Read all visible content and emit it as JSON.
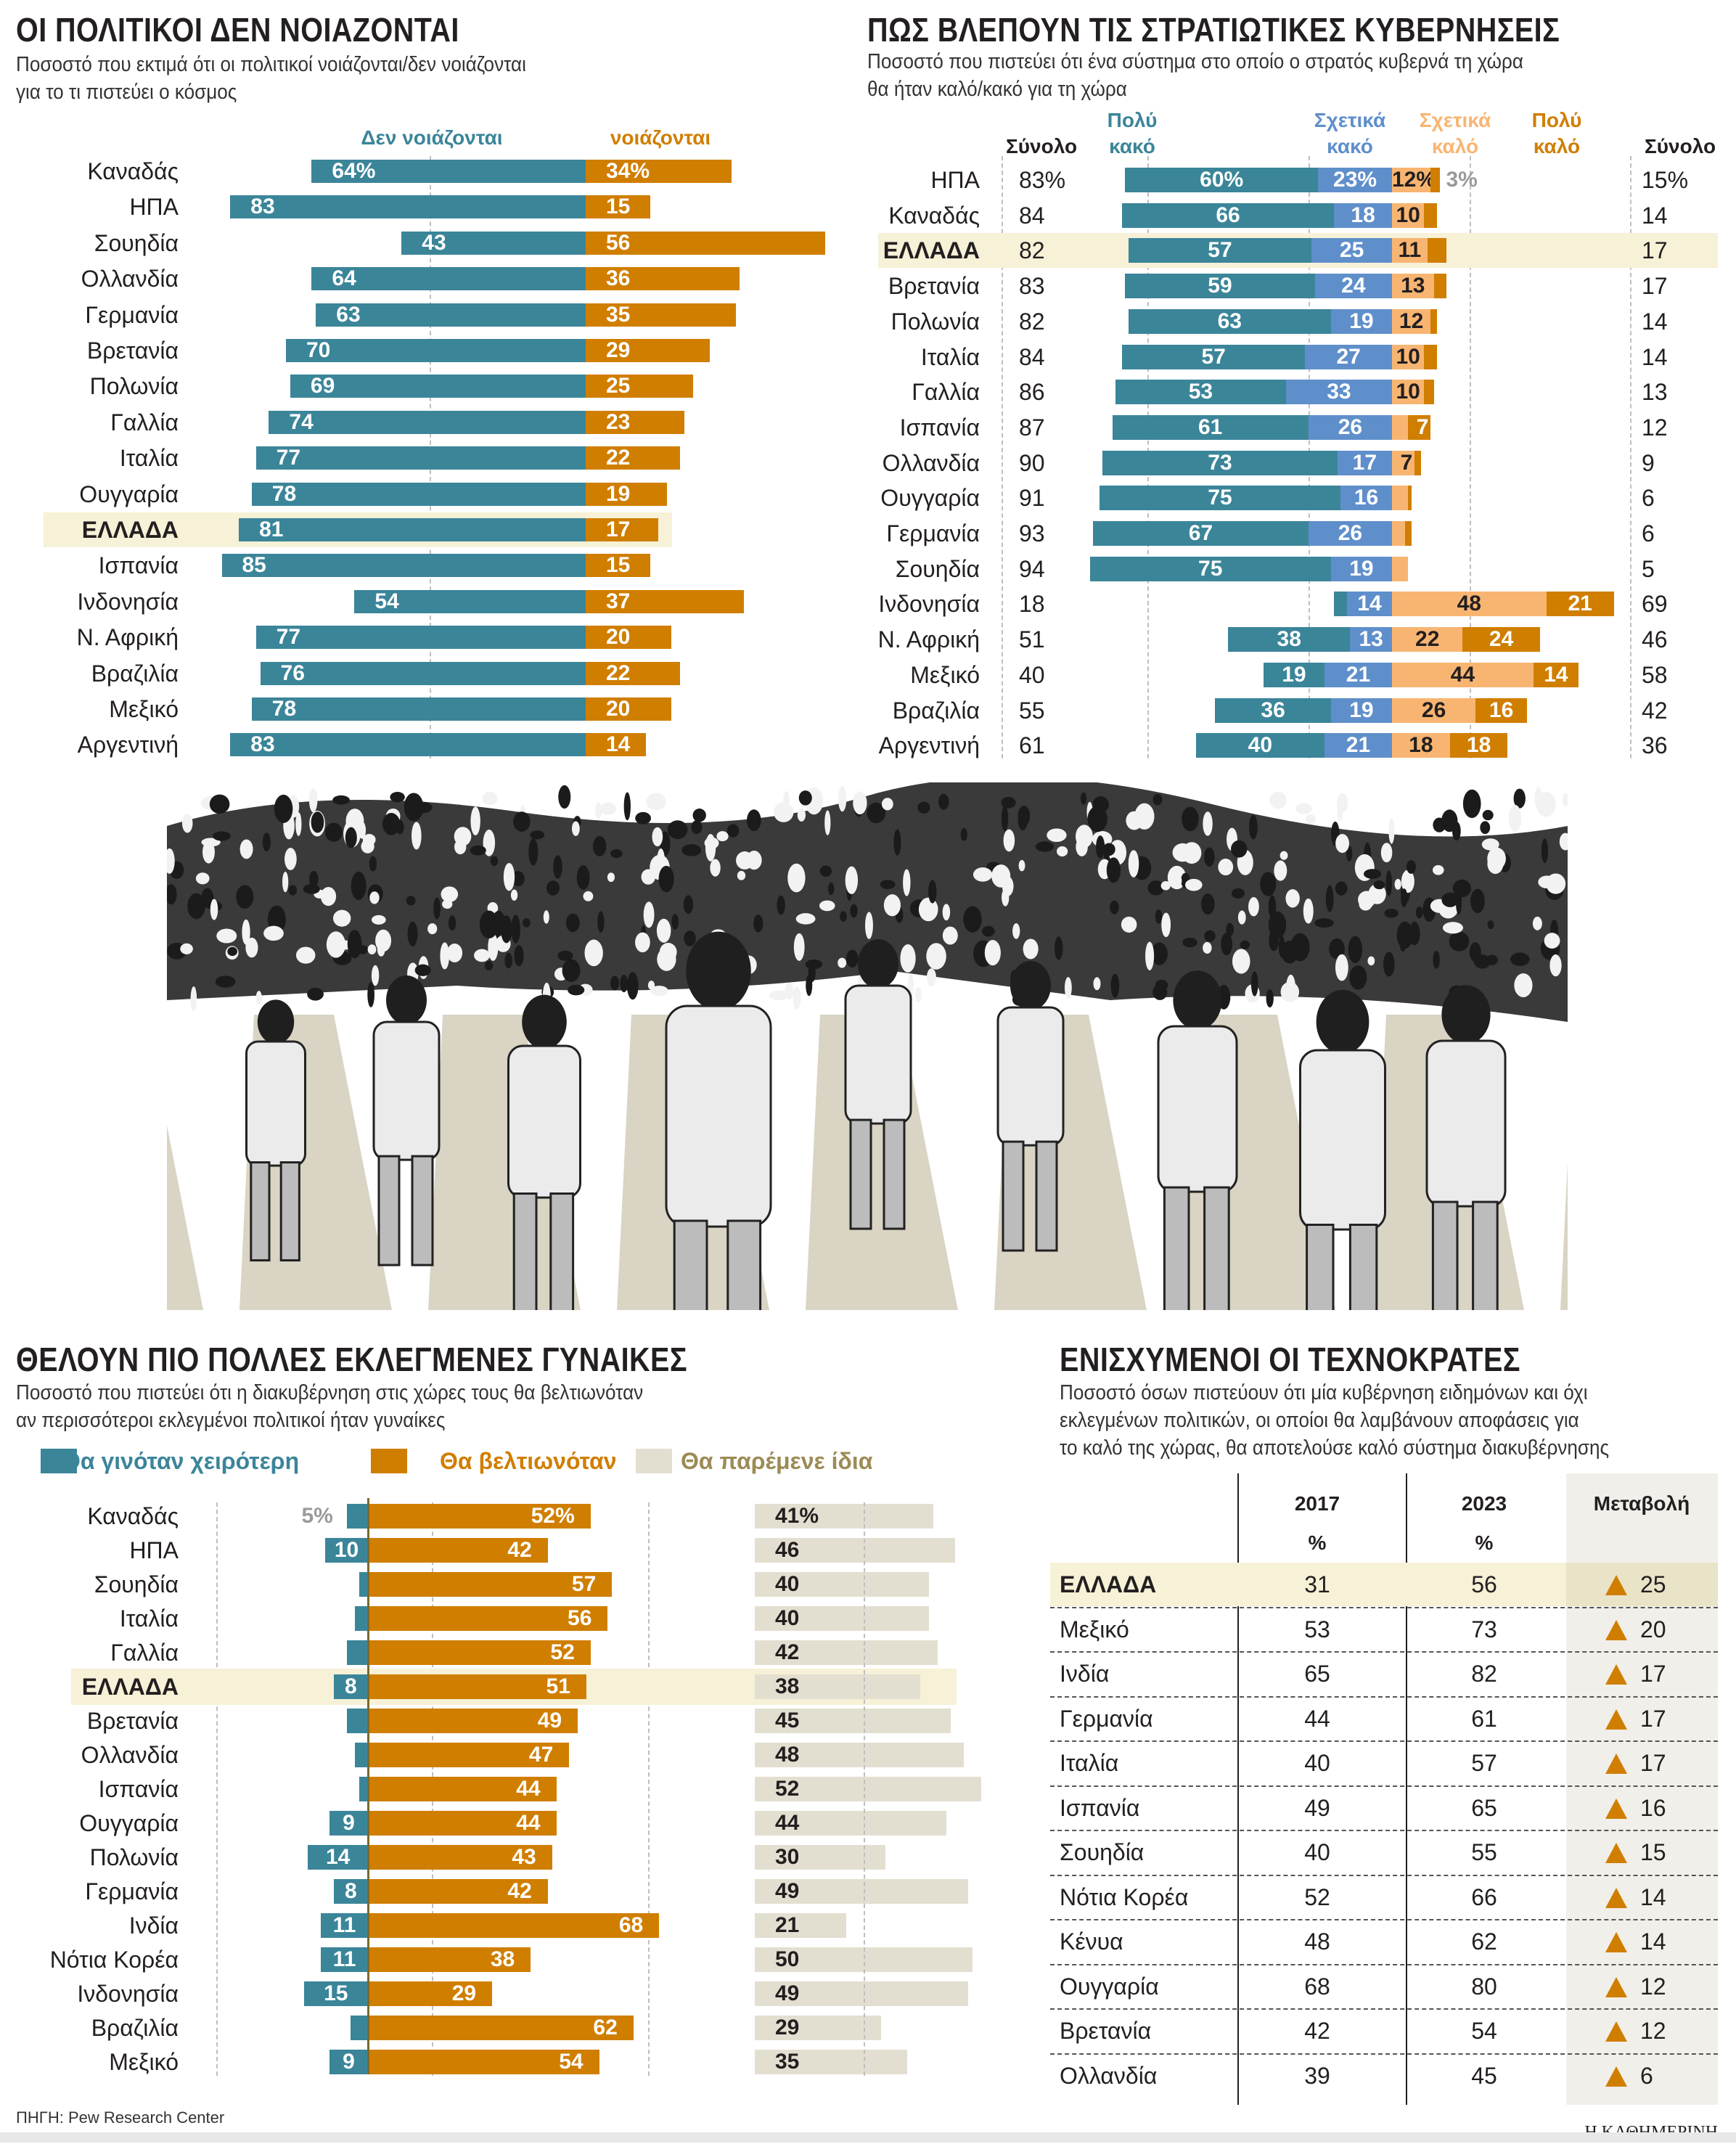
{
  "colors": {
    "teal": "#3b8599",
    "dark_orange": "#d07e00",
    "light_orange": "#f8b572",
    "blue": "#5f8fcb",
    "beige": "#e3dfd0",
    "highlight": "#f6f1d7",
    "olive_text": "#9c8b55"
  },
  "chart_data": [
    {
      "type": "bar",
      "title": "ΟΙ ΠΟΛΙΤΙΚΟΙ ΔΕΝ ΝΟΙΑΖΟΝΤΑΙ",
      "subtitle_lines": [
        "Ποσοστό που εκτιμά ότι οι πολιτικοί νοιάζονται/δεν νοιάζονται",
        "για το τι πιστεύει ο κόσμος"
      ],
      "series_names": [
        "Δεν νοιάζονται",
        "νοιάζονται"
      ],
      "unit": "%",
      "highlight": "ΕΛΛΑΔΑ",
      "categories": [
        "Καναδάς",
        "ΗΠΑ",
        "Σουηδία",
        "Ολλανδία",
        "Γερμανία",
        "Βρετανία",
        "Πολωνία",
        "Γαλλία",
        "Ιταλία",
        "Ουγγαρία",
        "ΕΛΛΑΔΑ",
        "Ισπανία",
        "Ινδονησία",
        "Ν. Αφρική",
        "Βραζιλία",
        "Μεξικό",
        "Αργεντινή"
      ],
      "series": [
        {
          "name": "Δεν νοιάζονται",
          "values": [
            64,
            83,
            43,
            64,
            63,
            70,
            69,
            74,
            77,
            78,
            81,
            85,
            54,
            77,
            76,
            78,
            83
          ]
        },
        {
          "name": "νοιάζονται",
          "values": [
            34,
            15,
            56,
            36,
            35,
            29,
            25,
            23,
            22,
            19,
            17,
            15,
            37,
            20,
            22,
            20,
            14
          ]
        }
      ]
    },
    {
      "type": "bar",
      "title": "ΠΩΣ ΒΛΕΠΟΥΝ ΤΙΣ ΣΤΡΑΤΙΩΤΙΚΕΣ ΚΥΒΕΡΝΗΣΕΙΣ",
      "subtitle_lines": [
        "Ποσοστό που πιστεύει ότι ένα σύστημα στο οποίο ο στρατός κυβερνά τη χώρα",
        "θα ήταν καλό/κακό για τη χώρα"
      ],
      "headers": {
        "total_bad": "Σύνολο",
        "very_bad": [
          "Πολύ",
          "κακό"
        ],
        "somewhat_bad": [
          "Σχετικά",
          "κακό"
        ],
        "somewhat_good": [
          "Σχετικά",
          "καλό"
        ],
        "very_good": [
          "Πολύ",
          "καλό"
        ],
        "total_good": "Σύνολο"
      },
      "unit": "%",
      "highlight": "ΕΛΛΑΔΑ",
      "categories": [
        "ΗΠΑ",
        "Καναδάς",
        "ΕΛΛΑΔΑ",
        "Βρετανία",
        "Πολωνία",
        "Ιταλία",
        "Γαλλία",
        "Ισπανία",
        "Ολλανδία",
        "Ουγγαρία",
        "Γερμανία",
        "Σουηδία",
        "Ινδονησία",
        "Ν. Αφρική",
        "Μεξικό",
        "Βραζιλία",
        "Αργεντινή"
      ],
      "total_bad": [
        83,
        84,
        82,
        83,
        82,
        84,
        86,
        87,
        90,
        91,
        93,
        94,
        18,
        51,
        40,
        55,
        61
      ],
      "series": [
        {
          "name": "Πολύ κακό",
          "values": [
            60,
            66,
            57,
            59,
            63,
            57,
            53,
            61,
            73,
            75,
            67,
            75,
            4,
            38,
            19,
            36,
            40
          ]
        },
        {
          "name": "Σχετικά κακό",
          "values": [
            23,
            18,
            25,
            24,
            19,
            27,
            33,
            26,
            17,
            16,
            26,
            19,
            14,
            13,
            21,
            19,
            21
          ]
        },
        {
          "name": "Σχετικά καλό",
          "values": [
            12,
            10,
            11,
            13,
            12,
            10,
            10,
            5,
            7,
            5,
            4,
            5,
            48,
            22,
            44,
            26,
            18
          ]
        },
        {
          "name": "Πολύ καλό",
          "values": [
            3,
            4,
            6,
            4,
            2,
            4,
            3,
            7,
            2,
            1,
            2,
            0,
            21,
            24,
            14,
            16,
            18
          ]
        }
      ],
      "total_good": [
        15,
        14,
        17,
        17,
        14,
        14,
        13,
        12,
        9,
        6,
        6,
        5,
        69,
        46,
        58,
        42,
        36
      ]
    },
    {
      "type": "bar",
      "title": "ΘΕΛΟΥΝ ΠΙΟ ΠΟΛΛΕΣ ΕΚΛΕΓΜΕΝΕΣ ΓΥΝΑΙΚΕΣ",
      "subtitle_lines": [
        "Ποσοστό που πιστεύει ότι η διακυβέρνηση στις χώρες τους θα βελτιωνόταν",
        "αν περισσότεροι εκλεγμένοι πολιτικοί ήταν γυναίκες"
      ],
      "legend": [
        "Θα γινόταν χειρότερη",
        "Θα βελτιωνόταν",
        "Θα παρέμενε ίδια"
      ],
      "legend_position": "top",
      "unit": "%",
      "highlight": "ΕΛΛΑΔΑ",
      "categories": [
        "Καναδάς",
        "ΗΠΑ",
        "Σουηδία",
        "Ιταλία",
        "Γαλλία",
        "ΕΛΛΑΔΑ",
        "Βρετανία",
        "Ολλανδία",
        "Ισπανία",
        "Ουγγαρία",
        "Πολωνία",
        "Γερμανία",
        "Ινδία",
        "Νότια Κορέα",
        "Ινδονησία",
        "Βραζιλία",
        "Μεξικό"
      ],
      "series": [
        {
          "name": "Θα γινόταν χειρότερη",
          "values": [
            5,
            10,
            2,
            3,
            5,
            8,
            5,
            3,
            2,
            9,
            14,
            8,
            11,
            11,
            15,
            4,
            9
          ]
        },
        {
          "name": "Θα βελτιωνόταν",
          "values": [
            52,
            42,
            57,
            56,
            52,
            51,
            49,
            47,
            44,
            44,
            43,
            42,
            68,
            38,
            29,
            62,
            54
          ]
        },
        {
          "name": "Θα παρέμενε ίδια",
          "values": [
            41,
            46,
            40,
            40,
            42,
            38,
            45,
            48,
            52,
            44,
            30,
            49,
            21,
            50,
            49,
            29,
            35
          ]
        }
      ]
    },
    {
      "type": "table",
      "title": "ΕΝΙΣΧΥΜΕΝΟΙ ΟΙ ΤΕΧΝΟΚΡΑΤΕΣ",
      "subtitle_lines": [
        "Ποσοστό όσων πιστεύουν ότι μία κυβέρνηση ειδημόνων και όχι",
        "εκλεγμένων πολιτικών, οι οποίοι θα λαμβάνουν αποφάσεις για",
        "το καλό της χώρας, θα αποτελούσε καλό σύστημα διακυβέρνησης"
      ],
      "columns": [
        "2017",
        "2023",
        "Μεταβολή"
      ],
      "units": [
        "%",
        "%",
        ""
      ],
      "highlight": "ΕΛΛΑΔΑ",
      "change_icon": "triangle-up-icon",
      "rows": [
        {
          "country": "ΕΛΛΑΔΑ",
          "y2017": "31",
          "y2023": "56",
          "change": "25"
        },
        {
          "country": "Μεξικό",
          "y2017": "53",
          "y2023": "73",
          "change": "20"
        },
        {
          "country": "Ινδία",
          "y2017": "65",
          "y2023": "82",
          "change": "17"
        },
        {
          "country": "Γερμανία",
          "y2017": "44",
          "y2023": "61",
          "change": "17"
        },
        {
          "country": "Ιταλία",
          "y2017": "40",
          "y2023": "57",
          "change": "17"
        },
        {
          "country": "Ισπανία",
          "y2017": "49",
          "y2023": "65",
          "change": "16"
        },
        {
          "country": "Σουηδία",
          "y2017": "40",
          "y2023": "55",
          "change": "15"
        },
        {
          "country": "Νότια Κορέα",
          "y2017": "52",
          "y2023": "66",
          "change": "14"
        },
        {
          "country": "Κένυα",
          "y2017": "48",
          "y2023": "62",
          "change": "14"
        },
        {
          "country": "Ουγγαρία",
          "y2017": "68",
          "y2023": "80",
          "change": "12"
        },
        {
          "country": "Βρετανία",
          "y2017": "42",
          "y2023": "54",
          "change": "12"
        },
        {
          "country": "Ολλανδία",
          "y2017": "39",
          "y2023": "45",
          "change": "6"
        }
      ]
    }
  ],
  "footer": {
    "source": "ΠΗΓΗ: Pew Research Center",
    "brand": "Η ΚΑΘΗΜΕΡΙΝΗ"
  }
}
